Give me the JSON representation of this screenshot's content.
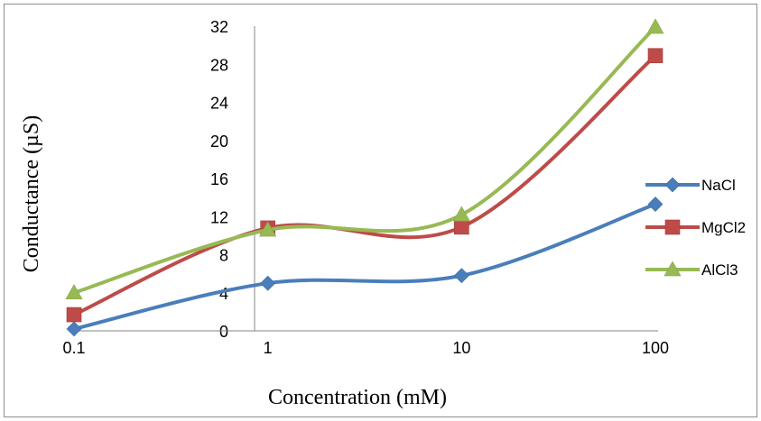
{
  "chart_data": {
    "type": "line",
    "x_scale": "log",
    "x": [
      0.1,
      1,
      10,
      100
    ],
    "x_tick_labels": [
      "0.1",
      "1",
      "10",
      "100"
    ],
    "y_ticks": [
      0,
      4,
      8,
      12,
      16,
      20,
      24,
      28,
      32
    ],
    "ylim": [
      0,
      32
    ],
    "xlabel": "Concentration (mM)",
    "ylabel": "Conductance (µS)",
    "grid": false,
    "legend_position": "right",
    "series": [
      {
        "name": "NaCl",
        "color": "#4a7ebb",
        "marker": "diamond",
        "values": [
          0.2,
          5.0,
          5.8,
          13.3
        ]
      },
      {
        "name": "MgCl2",
        "color": "#be4b48",
        "marker": "square",
        "values": [
          1.7,
          10.8,
          10.9,
          28.9
        ]
      },
      {
        "name": "AlCl3",
        "color": "#98b954",
        "marker": "triangle",
        "values": [
          4.0,
          10.6,
          12.2,
          31.9
        ]
      }
    ]
  }
}
